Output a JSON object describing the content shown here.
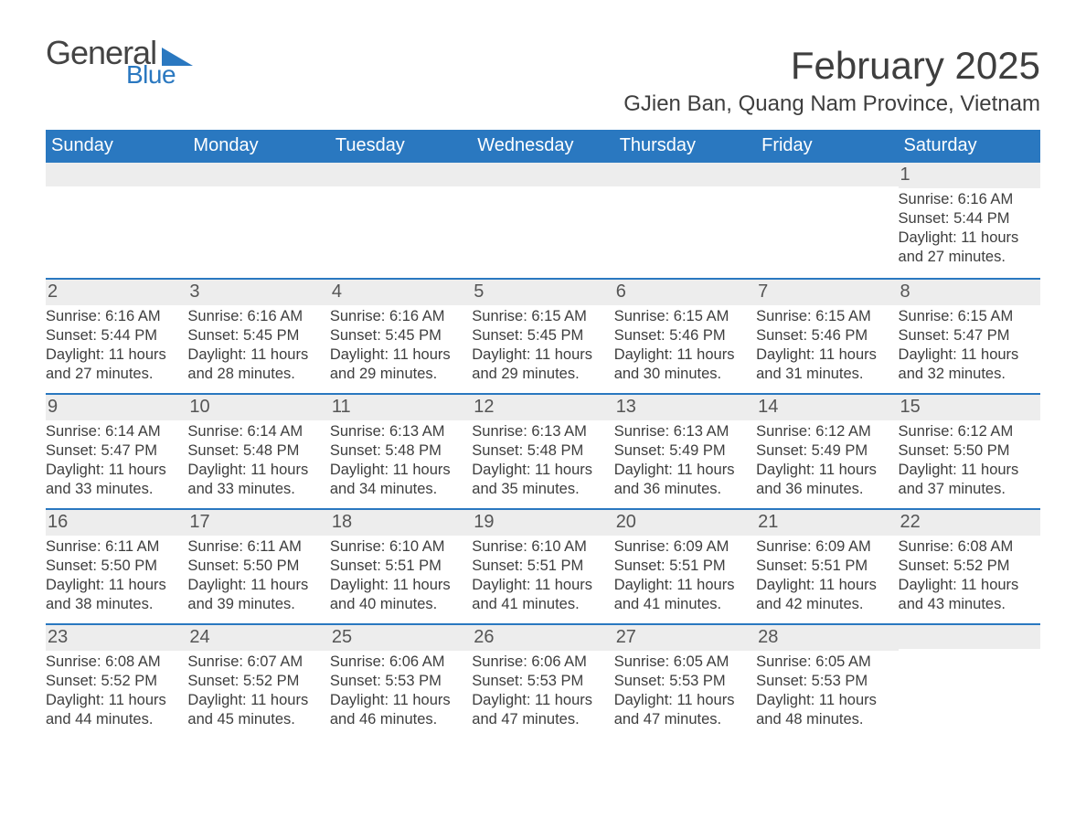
{
  "brand": {
    "part1": "General",
    "part2": "Blue",
    "part1_color": "#444444",
    "part2_color": "#2a78c0"
  },
  "title": "February 2025",
  "location": "GJien Ban, Quang Nam Province, Vietnam",
  "colors": {
    "header_bg": "#2a78c0",
    "header_text": "#ffffff",
    "daynum_bg": "#ededed",
    "week_divider": "#2a78c0",
    "body_text": "#3e3e3e",
    "page_bg": "#ffffff"
  },
  "typography": {
    "title_fontsize": 42,
    "subtitle_fontsize": 24,
    "dow_fontsize": 20,
    "daynum_fontsize": 20,
    "body_fontsize": 16.5
  },
  "layout": {
    "columns": 7,
    "rows": 5,
    "start_day_index": 6
  },
  "days_of_week": [
    "Sunday",
    "Monday",
    "Tuesday",
    "Wednesday",
    "Thursday",
    "Friday",
    "Saturday"
  ],
  "days": [
    {
      "n": 1,
      "sunrise": "6:16 AM",
      "sunset": "5:44 PM",
      "daylight": "11 hours and 27 minutes."
    },
    {
      "n": 2,
      "sunrise": "6:16 AM",
      "sunset": "5:44 PM",
      "daylight": "11 hours and 27 minutes."
    },
    {
      "n": 3,
      "sunrise": "6:16 AM",
      "sunset": "5:45 PM",
      "daylight": "11 hours and 28 minutes."
    },
    {
      "n": 4,
      "sunrise": "6:16 AM",
      "sunset": "5:45 PM",
      "daylight": "11 hours and 29 minutes."
    },
    {
      "n": 5,
      "sunrise": "6:15 AM",
      "sunset": "5:45 PM",
      "daylight": "11 hours and 29 minutes."
    },
    {
      "n": 6,
      "sunrise": "6:15 AM",
      "sunset": "5:46 PM",
      "daylight": "11 hours and 30 minutes."
    },
    {
      "n": 7,
      "sunrise": "6:15 AM",
      "sunset": "5:46 PM",
      "daylight": "11 hours and 31 minutes."
    },
    {
      "n": 8,
      "sunrise": "6:15 AM",
      "sunset": "5:47 PM",
      "daylight": "11 hours and 32 minutes."
    },
    {
      "n": 9,
      "sunrise": "6:14 AM",
      "sunset": "5:47 PM",
      "daylight": "11 hours and 33 minutes."
    },
    {
      "n": 10,
      "sunrise": "6:14 AM",
      "sunset": "5:48 PM",
      "daylight": "11 hours and 33 minutes."
    },
    {
      "n": 11,
      "sunrise": "6:13 AM",
      "sunset": "5:48 PM",
      "daylight": "11 hours and 34 minutes."
    },
    {
      "n": 12,
      "sunrise": "6:13 AM",
      "sunset": "5:48 PM",
      "daylight": "11 hours and 35 minutes."
    },
    {
      "n": 13,
      "sunrise": "6:13 AM",
      "sunset": "5:49 PM",
      "daylight": "11 hours and 36 minutes."
    },
    {
      "n": 14,
      "sunrise": "6:12 AM",
      "sunset": "5:49 PM",
      "daylight": "11 hours and 36 minutes."
    },
    {
      "n": 15,
      "sunrise": "6:12 AM",
      "sunset": "5:50 PM",
      "daylight": "11 hours and 37 minutes."
    },
    {
      "n": 16,
      "sunrise": "6:11 AM",
      "sunset": "5:50 PM",
      "daylight": "11 hours and 38 minutes."
    },
    {
      "n": 17,
      "sunrise": "6:11 AM",
      "sunset": "5:50 PM",
      "daylight": "11 hours and 39 minutes."
    },
    {
      "n": 18,
      "sunrise": "6:10 AM",
      "sunset": "5:51 PM",
      "daylight": "11 hours and 40 minutes."
    },
    {
      "n": 19,
      "sunrise": "6:10 AM",
      "sunset": "5:51 PM",
      "daylight": "11 hours and 41 minutes."
    },
    {
      "n": 20,
      "sunrise": "6:09 AM",
      "sunset": "5:51 PM",
      "daylight": "11 hours and 41 minutes."
    },
    {
      "n": 21,
      "sunrise": "6:09 AM",
      "sunset": "5:51 PM",
      "daylight": "11 hours and 42 minutes."
    },
    {
      "n": 22,
      "sunrise": "6:08 AM",
      "sunset": "5:52 PM",
      "daylight": "11 hours and 43 minutes."
    },
    {
      "n": 23,
      "sunrise": "6:08 AM",
      "sunset": "5:52 PM",
      "daylight": "11 hours and 44 minutes."
    },
    {
      "n": 24,
      "sunrise": "6:07 AM",
      "sunset": "5:52 PM",
      "daylight": "11 hours and 45 minutes."
    },
    {
      "n": 25,
      "sunrise": "6:06 AM",
      "sunset": "5:53 PM",
      "daylight": "11 hours and 46 minutes."
    },
    {
      "n": 26,
      "sunrise": "6:06 AM",
      "sunset": "5:53 PM",
      "daylight": "11 hours and 47 minutes."
    },
    {
      "n": 27,
      "sunrise": "6:05 AM",
      "sunset": "5:53 PM",
      "daylight": "11 hours and 47 minutes."
    },
    {
      "n": 28,
      "sunrise": "6:05 AM",
      "sunset": "5:53 PM",
      "daylight": "11 hours and 48 minutes."
    }
  ],
  "labels": {
    "sunrise": "Sunrise:",
    "sunset": "Sunset:",
    "daylight": "Daylight:"
  }
}
